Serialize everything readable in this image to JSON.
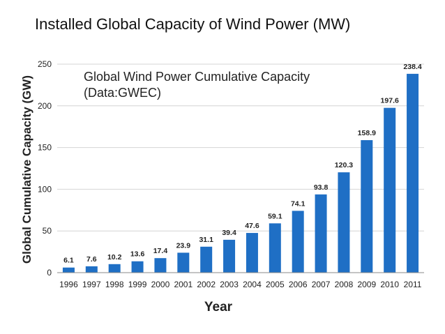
{
  "slide": {
    "title": "Installed Global Capacity of Wind Power (MW)"
  },
  "chart_data": {
    "type": "bar",
    "title": "Global Wind Power Cumulative Capacity",
    "subtitle": "(Data:GWEC)",
    "xlabel": "Year",
    "ylabel": "Global Cumulative Capacity (GW)",
    "ylim": [
      0,
      250
    ],
    "yticks": [
      0,
      50,
      100,
      150,
      200,
      250
    ],
    "grid": true,
    "bar_color": "#1f6fc5",
    "categories": [
      "1996",
      "1997",
      "1998",
      "1999",
      "2000",
      "2001",
      "2002",
      "2003",
      "2004",
      "2005",
      "2006",
      "2007",
      "2008",
      "2009",
      "2010",
      "2011"
    ],
    "values": [
      6.1,
      7.6,
      10.2,
      13.6,
      17.4,
      23.9,
      31.1,
      39.4,
      47.6,
      59.1,
      74.1,
      93.8,
      120.3,
      158.9,
      197.6,
      238.4
    ]
  }
}
